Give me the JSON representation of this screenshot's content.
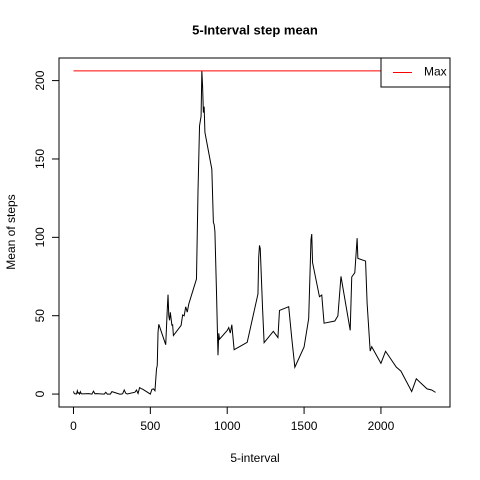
{
  "chart_data": {
    "type": "line",
    "title": "5-Interval step mean",
    "x_label": "5-interval",
    "y_label": "Mean of steps",
    "color": "#000000",
    "x": [
      0,
      5,
      10,
      15,
      20,
      25,
      30,
      35,
      40,
      45,
      50,
      55,
      100,
      110,
      120,
      130,
      140,
      150,
      200,
      210,
      220,
      230,
      240,
      250,
      300,
      310,
      320,
      330,
      340,
      350,
      400,
      410,
      420,
      430,
      440,
      450,
      500,
      510,
      520,
      530,
      540,
      545,
      550,
      555,
      600,
      610,
      615,
      620,
      625,
      630,
      640,
      645,
      650,
      700,
      710,
      720,
      730,
      740,
      750,
      800,
      810,
      820,
      830,
      835,
      840,
      845,
      850,
      855,
      900,
      910,
      915,
      920,
      930,
      940,
      945,
      950,
      1000,
      1010,
      1020,
      1030,
      1045,
      1100,
      1130,
      1200,
      1205,
      1210,
      1215,
      1230,
      1240,
      1300,
      1330,
      1340,
      1400,
      1420,
      1440,
      1500,
      1530,
      1545,
      1550,
      1555,
      1600,
      1615,
      1630,
      1700,
      1720,
      1740,
      1800,
      1810,
      1830,
      1845,
      1850,
      1900,
      1910,
      1930,
      1940,
      2000,
      2030,
      2100,
      2130,
      2200,
      2230,
      2300,
      2330,
      2355
    ],
    "values": [
      1.72,
      0.34,
      0.13,
      0.15,
      0.08,
      2.09,
      0.53,
      0.87,
      0,
      1.47,
      0.3,
      0.13,
      0.32,
      0.15,
      0,
      1.83,
      0.17,
      0.26,
      0,
      1.13,
      0,
      0,
      0,
      1.55,
      0,
      0,
      0.21,
      2.62,
      0.49,
      0.08,
      1.19,
      2.57,
      0.34,
      4.11,
      3.49,
      3.11,
      0,
      3,
      3.32,
      2.13,
      16.02,
      18.34,
      39.45,
      44.49,
      31.49,
      53.77,
      63.45,
      49.92,
      47.08,
      52.15,
      44.02,
      44.17,
      37.36,
      43.81,
      50.51,
      49.92,
      55.68,
      52.26,
      57.47,
      73.38,
      129.43,
      171.15,
      177.3,
      206.17,
      195.92,
      179.57,
      183.4,
      167.02,
      143.45,
      109.45,
      108.11,
      103.72,
      66.21,
      24.79,
      38.75,
      34.98,
      40.57,
      42.42,
      38.92,
      44.28,
      28.34,
      31.36,
      33.02,
      63.87,
      87.7,
      94.85,
      92.77,
      54.47,
      32.77,
      40.04,
      36.06,
      53.36,
      55.75,
      35.47,
      17.11,
      30.02,
      48.13,
      98.66,
      102.11,
      83.96,
      62.13,
      63.17,
      45.23,
      46.62,
      49.89,
      75.09,
      40.68,
      74.7,
      77.43,
      99.45,
      86.58,
      84.87,
      58.02,
      27.4,
      30.21,
      19.62,
      27.3,
      17.19,
      14.66,
      1.62,
      9.75,
      3.3,
      2.6,
      1.08
    ],
    "reference_line": {
      "name": "Max",
      "value": 206.17,
      "color": "#ff0000"
    },
    "legend": "topright",
    "xlim": [
      -94.2,
      2449.2
    ],
    "ylim": [
      -8.25,
      214.42
    ],
    "xticks": [
      0,
      500,
      1000,
      1500,
      2000
    ],
    "yticks": [
      0,
      50,
      100,
      150,
      200
    ]
  }
}
